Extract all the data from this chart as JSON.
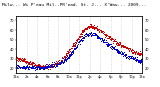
{
  "title": "Milw... Wi P'eau Mil..PR'ead. St. J... X'Wau... 2009...",
  "title_fontsize": 3.2,
  "temp_color": "#cc0000",
  "dew_color": "#0000cc",
  "background_color": "#ffffff",
  "plot_bg_color": "#ffffff",
  "grid_color": "#999999",
  "ylim": [
    15,
    75
  ],
  "xlim": [
    0,
    1440
  ],
  "ytick_values": [
    20,
    30,
    40,
    50,
    60,
    70
  ],
  "xtick_hours": [
    0,
    2,
    4,
    6,
    8,
    10,
    12,
    14,
    16,
    18,
    20,
    22,
    24
  ],
  "xtick_fontsize": 2.5,
  "ytick_fontsize": 2.5,
  "markersize": 0.5,
  "temp_curve": [
    30,
    28,
    26,
    24,
    22,
    21,
    21,
    22,
    25,
    30,
    36,
    44,
    52,
    60,
    63,
    62,
    58,
    54,
    50,
    46,
    43,
    40,
    37,
    35,
    33
  ],
  "dew_curve": [
    20,
    20,
    20,
    20,
    20,
    20,
    21,
    22,
    24,
    27,
    31,
    38,
    46,
    53,
    55,
    54,
    50,
    46,
    42,
    38,
    35,
    32,
    30,
    28,
    26
  ]
}
